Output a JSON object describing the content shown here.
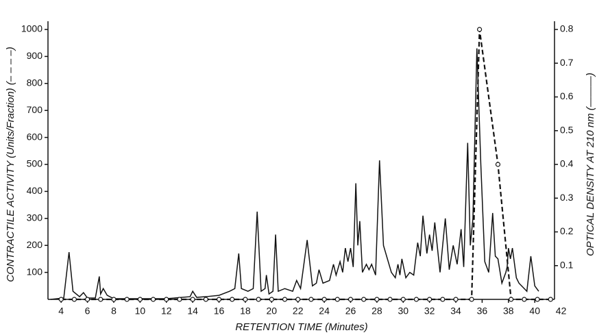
{
  "chart_data": {
    "type": "line",
    "xlabel": "RETENTION TIME (Minutes)",
    "ylabel": "CONTRACTILE ACTIVITY (Units/Fraction) (– – – –)",
    "y2label": "OPTICAL DENSITY AT 210 nm (———)",
    "xlim": [
      3,
      41.5
    ],
    "xticks": [
      4,
      6,
      8,
      10,
      12,
      14,
      16,
      18,
      20,
      22,
      24,
      26,
      28,
      30,
      32,
      34,
      36,
      38,
      40,
      42
    ],
    "ylim": [
      0,
      1000
    ],
    "yticks": [
      100,
      200,
      300,
      400,
      500,
      600,
      700,
      800,
      900,
      1000
    ],
    "y2lim": [
      0,
      0.8
    ],
    "y2ticks": [
      0.1,
      0.2,
      0.3,
      0.4,
      0.5,
      0.6,
      0.7,
      0.8
    ],
    "series": [
      {
        "color": "#111111",
        "dashed": false,
        "axis": "y2",
        "x": [
          3.2,
          4.2,
          4.6,
          4.9,
          5.4,
          5.7,
          6.0,
          6.6,
          6.9,
          7.0,
          7.2,
          7.5,
          8,
          10,
          12,
          13.8,
          14,
          14.3,
          15,
          16,
          16.8,
          17.2,
          17.5,
          17.7,
          18.2,
          18.6,
          18.9,
          19.2,
          19.5,
          19.6,
          19.8,
          20.1,
          20.3,
          20.5,
          21,
          21.6,
          21.9,
          22.2,
          22.7,
          23.1,
          23.4,
          23.6,
          23.9,
          24.4,
          24.7,
          24.9,
          25.2,
          25.4,
          25.6,
          25.8,
          26.0,
          26.2,
          26.4,
          26.55,
          26.7,
          26.9,
          27.2,
          27.4,
          27.6,
          27.9,
          28.2,
          28.5,
          29.1,
          29.4,
          29.6,
          29.75,
          29.9,
          30.2,
          30.5,
          30.8,
          31.1,
          31.3,
          31.5,
          31.8,
          32.0,
          32.2,
          32.4,
          32.8,
          33.2,
          33.5,
          33.8,
          34.1,
          34.4,
          34.6,
          34.9,
          35.1,
          35.3,
          35.6,
          35.9,
          36.2,
          36.5,
          36.8,
          37.0,
          37.2,
          37.5,
          37.8,
          37.9,
          38.0,
          38.15,
          38.3,
          38.6,
          38.8,
          39.2,
          39.4,
          39.7,
          40.0,
          40.3
        ],
        "values": [
          0,
          0.004,
          0.14,
          0.024,
          0.008,
          0.02,
          0.004,
          0.004,
          0.068,
          0.016,
          0.032,
          0.012,
          0.002,
          0.002,
          0.002,
          0.008,
          0.024,
          0.006,
          0.008,
          0.012,
          0.024,
          0.032,
          0.136,
          0.032,
          0.024,
          0.032,
          0.26,
          0.024,
          0.032,
          0.072,
          0.016,
          0.024,
          0.192,
          0.024,
          0.032,
          0.024,
          0.056,
          0.032,
          0.176,
          0.04,
          0.048,
          0.088,
          0.048,
          0.056,
          0.104,
          0.072,
          0.112,
          0.08,
          0.152,
          0.112,
          0.152,
          0.096,
          0.344,
          0.16,
          0.232,
          0.08,
          0.104,
          0.088,
          0.104,
          0.072,
          0.412,
          0.16,
          0.08,
          0.064,
          0.104,
          0.072,
          0.12,
          0.064,
          0.08,
          0.072,
          0.168,
          0.128,
          0.248,
          0.136,
          0.192,
          0.144,
          0.228,
          0.08,
          0.24,
          0.088,
          0.16,
          0.104,
          0.208,
          0.096,
          0.464,
          0.16,
          0.24,
          0.744,
          0.4,
          0.112,
          0.08,
          0.256,
          0.128,
          0.12,
          0.048,
          0.08,
          0.096,
          0.152,
          0.12,
          0.152,
          0.064,
          0.048,
          0.032,
          0.024,
          0.128,
          0.04,
          0.024
        ]
      },
      {
        "color": "#111111",
        "dashed": true,
        "markers": true,
        "x": [
          4,
          5,
          6,
          7,
          8,
          9,
          10,
          11,
          12,
          13,
          14,
          15,
          16,
          17,
          18,
          19,
          20,
          21,
          22,
          23,
          24,
          25,
          26,
          27,
          28,
          29,
          30,
          31,
          32,
          33,
          34,
          35.2,
          35.8,
          37.2,
          38.2,
          39.2,
          40.2,
          41.2
        ],
        "values": [
          0,
          0,
          0,
          0,
          0,
          0,
          0,
          0,
          0,
          0,
          0,
          0,
          0,
          0,
          0,
          0,
          0,
          0,
          0,
          0,
          0,
          0,
          0,
          0,
          0,
          0,
          0,
          0,
          0,
          0,
          0,
          0,
          1000,
          500,
          0,
          0,
          0,
          0
        ]
      }
    ]
  }
}
